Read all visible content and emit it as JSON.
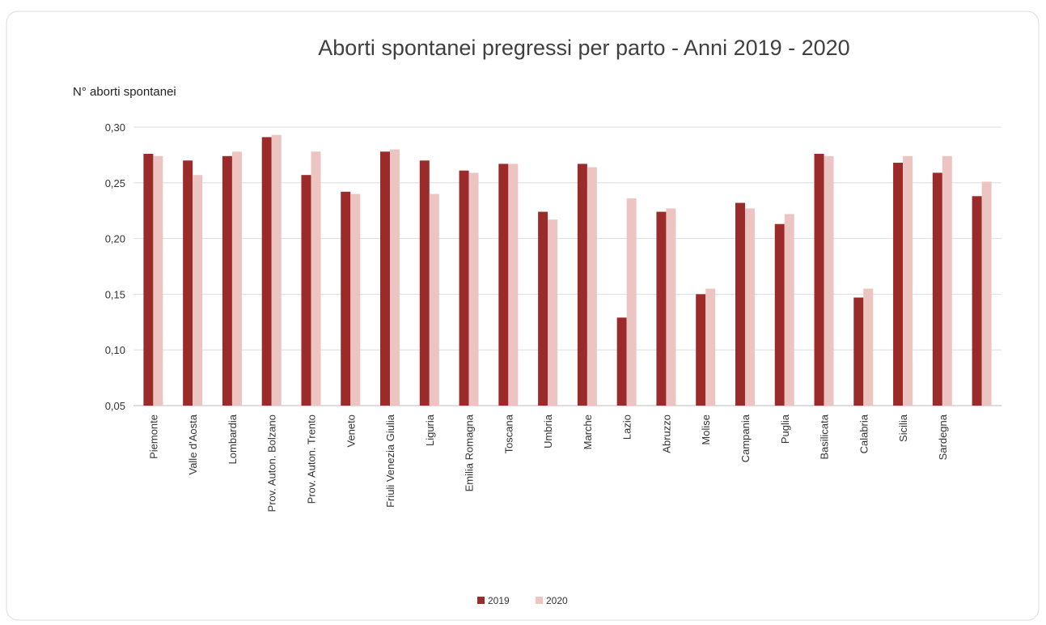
{
  "chart_data": {
    "type": "bar",
    "title": "Aborti spontanei pregressi per parto - Anni 2019 - 2020",
    "y_label": "N° aborti spontanei",
    "categories": [
      "Piemonte",
      "Valle d'Aosta",
      "Lombardia",
      "Prov. Auton. Bolzano",
      "Prov. Auton. Trento",
      "Veneto",
      "Friuli Venezia Giulia",
      "Liguria",
      "Emilia Romagna",
      "Toscana",
      "Umbria",
      "Marche",
      "Lazio",
      "Abruzzo",
      "Molise",
      "Campania",
      "Puglia",
      "Basilicata",
      "Calabria",
      "Sicilia",
      "Sardegna",
      null
    ],
    "series": [
      {
        "name": "2019",
        "color": "#9b2a2a",
        "values": [
          0.276,
          0.27,
          0.274,
          0.291,
          0.257,
          0.242,
          0.278,
          0.27,
          0.261,
          0.267,
          0.224,
          0.267,
          0.129,
          0.224,
          0.15,
          0.232,
          0.213,
          0.276,
          0.147,
          0.268,
          0.259,
          0.238
        ]
      },
      {
        "name": "2020",
        "color": "#ecc5c3",
        "values": [
          0.274,
          0.257,
          0.278,
          0.293,
          0.278,
          0.24,
          0.28,
          0.24,
          0.259,
          0.267,
          0.217,
          0.264,
          0.236,
          0.227,
          0.155,
          0.227,
          0.222,
          0.274,
          0.155,
          0.274,
          0.274,
          0.251
        ]
      }
    ],
    "ylim": [
      0.05,
      0.3
    ],
    "yticks": [
      {
        "value": 0.05,
        "label": "0,05"
      },
      {
        "value": 0.1,
        "label": "0,10"
      },
      {
        "value": 0.15,
        "label": "0,15"
      },
      {
        "value": 0.2,
        "label": "0,20"
      },
      {
        "value": 0.25,
        "label": "0,25"
      },
      {
        "value": 0.3,
        "label": "0,30"
      }
    ],
    "grid": true,
    "legend": "bottom"
  }
}
